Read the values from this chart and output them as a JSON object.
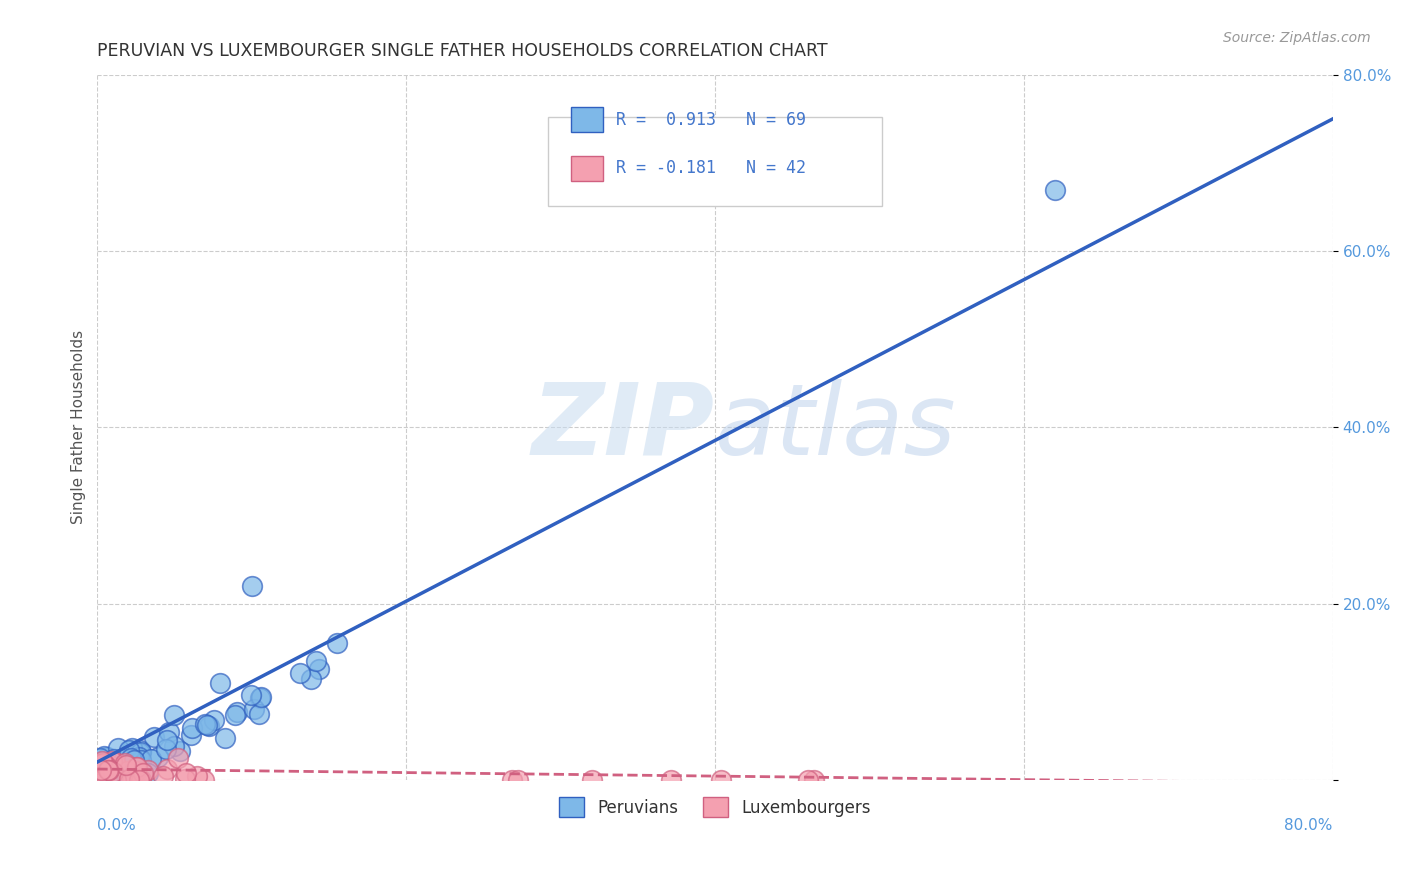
{
  "title": "PERUVIAN VS LUXEMBOURGER SINGLE FATHER HOUSEHOLDS CORRELATION CHART",
  "source": "Source: ZipAtlas.com",
  "ylabel": "Single Father Households",
  "xlim": [
    0.0,
    0.8
  ],
  "ylim": [
    0.0,
    0.8
  ],
  "background_color": "#ffffff",
  "watermark_zip": "ZIP",
  "watermark_atlas": "atlas",
  "peruvian_color": "#7EB8E8",
  "peruvian_line_color": "#3060C0",
  "luxembourger_color": "#F4A0B0",
  "luxembourger_line_color": "#D06080",
  "peruvian_label": "Peruvians",
  "luxembourger_label": "Luxembourgers",
  "peruvian_R": 0.913,
  "peruvian_N": 69,
  "luxembourger_R": -0.181,
  "luxembourger_N": 42,
  "grid_color": "#cccccc",
  "title_color": "#333333",
  "axis_label_color": "#5599DD",
  "legend_color": "#4477CC",
  "ytick_labels": [
    "",
    "20.0%",
    "40.0%",
    "60.0%",
    "80.0%"
  ],
  "ytick_vals": [
    0.0,
    0.2,
    0.4,
    0.6,
    0.8
  ]
}
